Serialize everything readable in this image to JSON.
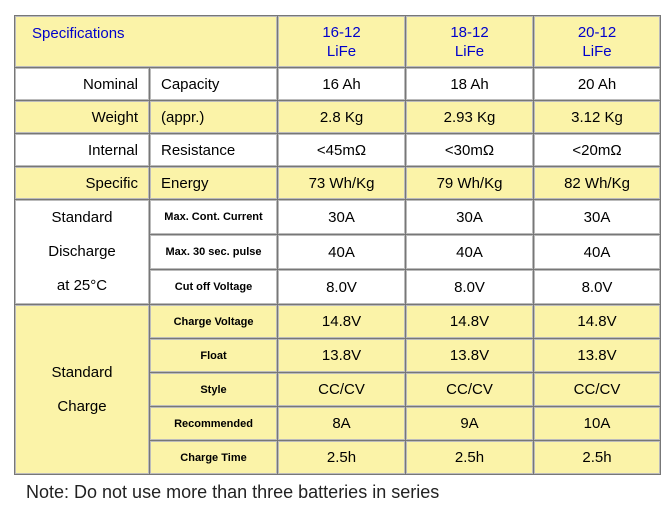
{
  "header": {
    "title": "Specifications",
    "models": [
      {
        "line1": "16-12",
        "line2": "LiFe"
      },
      {
        "line1": "18-12",
        "line2": "LiFe"
      },
      {
        "line1": "20-12",
        "line2": "LiFe"
      }
    ]
  },
  "rows_simple": [
    {
      "label": "Nominal",
      "sub": "Capacity",
      "values": [
        "16 Ah",
        "18 Ah",
        "20 Ah"
      ]
    },
    {
      "label": "Weight",
      "sub": "(appr.)",
      "values": [
        "2.8 Kg",
        "2.93 Kg",
        "3.12 Kg"
      ]
    },
    {
      "label": "Internal",
      "sub": "Resistance",
      "values": [
        "<45mΩ",
        "<30mΩ",
        "<20mΩ"
      ]
    },
    {
      "label": "Specific",
      "sub": "Energy",
      "values": [
        "73 Wh/Kg",
        "79 Wh/Kg",
        "82 Wh/Kg"
      ]
    }
  ],
  "discharge": {
    "group_lines": [
      "Standard",
      "Discharge",
      "at 25°C"
    ],
    "rows": [
      {
        "param": "Max. Cont. Current",
        "values": [
          "30A",
          "30A",
          "30A"
        ]
      },
      {
        "param": "Max. 30 sec. pulse",
        "values": [
          "40A",
          "40A",
          "40A"
        ]
      },
      {
        "param": "Cut off Voltage",
        "values": [
          "8.0V",
          "8.0V",
          "8.0V"
        ]
      }
    ]
  },
  "charge": {
    "group_lines": [
      "Standard",
      "Charge"
    ],
    "rows": [
      {
        "param": "Charge Voltage",
        "values": [
          "14.8V",
          "14.8V",
          "14.8V"
        ]
      },
      {
        "param": "Float",
        "values": [
          "13.8V",
          "13.8V",
          "13.8V"
        ]
      },
      {
        "param": "Style",
        "values": [
          "CC/CV",
          "CC/CV",
          "CC/CV"
        ]
      },
      {
        "param": "Recommended",
        "values": [
          "8A",
          "9A",
          "10A"
        ]
      },
      {
        "param": "Charge Time",
        "values": [
          "2.5h",
          "2.5h",
          "2.5h"
        ]
      }
    ]
  },
  "note": "Note: Do not use more than three batteries in series",
  "colors": {
    "highlight": "#fbf3a8",
    "header_text": "#0000cc"
  }
}
